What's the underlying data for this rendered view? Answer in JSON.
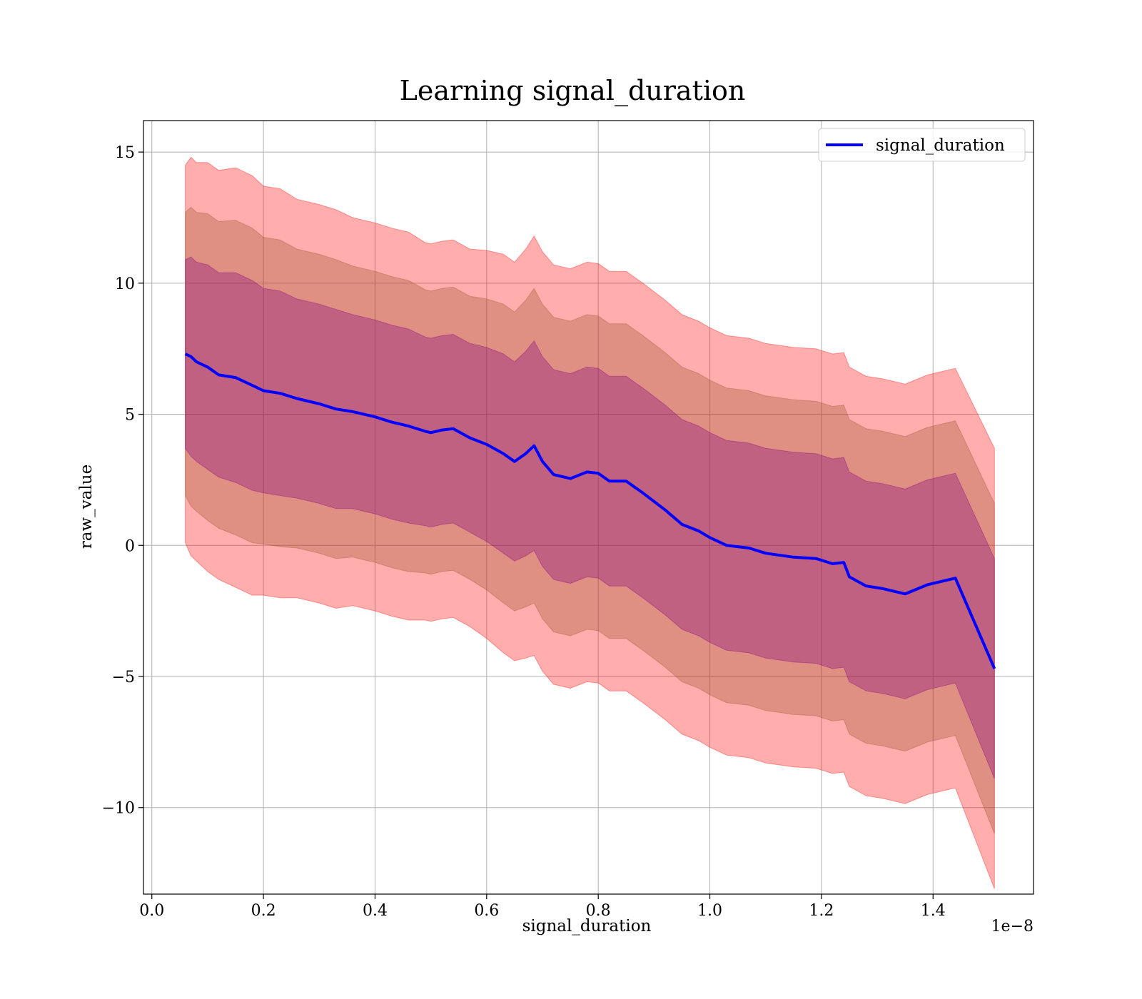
{
  "chart_data": {
    "type": "line",
    "title": "Learning signal_duration",
    "xlabel": "signal_duration",
    "ylabel": "raw_value",
    "x_offset_label": "1e−8",
    "xlim": [
      -0.015,
      1.58
    ],
    "ylim": [
      -13.3,
      16.2
    ],
    "x_ticks": [
      0.0,
      0.2,
      0.4,
      0.6,
      0.8,
      1.0,
      1.2,
      1.4
    ],
    "x_tick_labels": [
      "0.0",
      "0.2",
      "0.4",
      "0.6",
      "0.8",
      "1.0",
      "1.2",
      "1.4"
    ],
    "y_ticks": [
      -10,
      -5,
      0,
      5,
      10,
      15
    ],
    "y_tick_labels": [
      "−10",
      "−5",
      "0",
      "5",
      "10",
      "15"
    ],
    "grid": true,
    "legend_position": "top-right",
    "colors": {
      "mean_line": "#0000ff",
      "band_outer": "#ff0000",
      "band_middle": "#a0522d",
      "band_inner": "#800080"
    },
    "series": [
      {
        "name": "signal_duration",
        "x": [
          0.06,
          0.07,
          0.08,
          0.1,
          0.12,
          0.15,
          0.18,
          0.2,
          0.23,
          0.26,
          0.3,
          0.33,
          0.36,
          0.4,
          0.43,
          0.46,
          0.49,
          0.5,
          0.52,
          0.54,
          0.57,
          0.6,
          0.63,
          0.65,
          0.67,
          0.685,
          0.7,
          0.72,
          0.75,
          0.78,
          0.8,
          0.82,
          0.85,
          0.88,
          0.92,
          0.95,
          0.98,
          1.0,
          1.03,
          1.07,
          1.1,
          1.15,
          1.19,
          1.22,
          1.24,
          1.25,
          1.28,
          1.31,
          1.35,
          1.39,
          1.44,
          1.51
        ],
        "y": [
          7.3,
          7.2,
          7.0,
          6.8,
          6.5,
          6.4,
          6.1,
          5.9,
          5.8,
          5.6,
          5.4,
          5.2,
          5.1,
          4.9,
          4.7,
          4.55,
          4.35,
          4.3,
          4.4,
          4.45,
          4.1,
          3.85,
          3.5,
          3.2,
          3.5,
          3.8,
          3.2,
          2.7,
          2.55,
          2.8,
          2.75,
          2.45,
          2.45,
          2.0,
          1.35,
          0.8,
          0.55,
          0.3,
          0.0,
          -0.1,
          -0.3,
          -0.45,
          -0.5,
          -0.7,
          -0.65,
          -1.2,
          -1.55,
          -1.65,
          -1.85,
          -1.5,
          -1.25,
          -4.7
        ],
        "std_band": [
          3.6,
          3.8,
          3.8,
          3.9,
          3.9,
          4.0,
          4.0,
          3.9,
          3.9,
          3.8,
          3.8,
          3.8,
          3.7,
          3.7,
          3.7,
          3.7,
          3.6,
          3.6,
          3.6,
          3.6,
          3.6,
          3.7,
          3.8,
          3.8,
          3.9,
          4.0,
          4.0,
          4.0,
          4.0,
          4.0,
          4.0,
          4.0,
          4.0,
          4.0,
          4.0,
          4.0,
          4.0,
          4.0,
          4.0,
          4.0,
          4.0,
          4.0,
          4.0,
          4.0,
          4.0,
          4.0,
          4.0,
          4.0,
          4.0,
          4.0,
          4.0,
          4.2
        ]
      }
    ],
    "bands": [
      {
        "color_key": "band_outer",
        "k": 2.0
      },
      {
        "color_key": "band_middle",
        "k": 1.5
      },
      {
        "color_key": "band_inner",
        "k": 1.0
      }
    ]
  }
}
